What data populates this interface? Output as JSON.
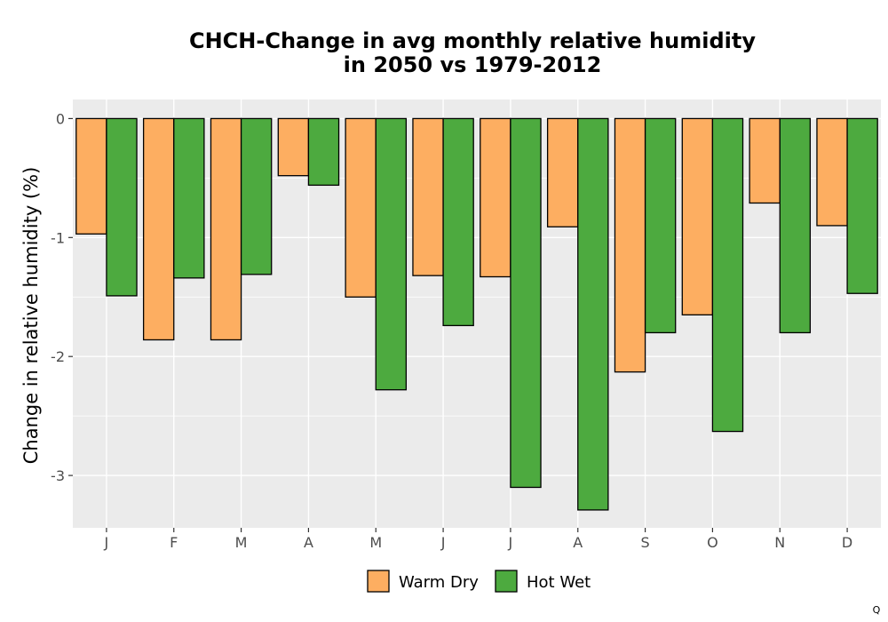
{
  "chart_data": {
    "type": "bar",
    "title": "CHCH-Change in avg monthly relative humidity\nin 2050 vs 1979-2012",
    "xlabel": "",
    "ylabel": "Change in relative humidity (%)",
    "categories": [
      "J",
      "F",
      "M",
      "A",
      "M",
      "J",
      "J",
      "A",
      "S",
      "O",
      "N",
      "D"
    ],
    "series": [
      {
        "name": "Warm Dry",
        "color": "#fdae61",
        "values": [
          -0.97,
          -1.86,
          -1.86,
          -0.48,
          -1.5,
          -1.32,
          -1.33,
          -0.91,
          -2.13,
          -1.65,
          -0.71,
          -0.9
        ]
      },
      {
        "name": "Hot Wet",
        "color": "#4daa3f",
        "values": [
          -1.49,
          -1.34,
          -1.31,
          -0.56,
          -2.28,
          -1.74,
          -3.1,
          -3.29,
          -1.8,
          -2.63,
          -1.8,
          -1.47
        ]
      }
    ],
    "ylim": [
      -3.44,
      0.16
    ],
    "yticks": [
      0,
      -1,
      -2,
      -3
    ],
    "ytick_labels": [
      "0",
      "-1",
      "-2",
      "-3"
    ],
    "grid": true,
    "legend_position": "bottom",
    "panel_background": "#ebebeb",
    "grid_color": "#ffffff"
  },
  "corner_mark": "Q"
}
